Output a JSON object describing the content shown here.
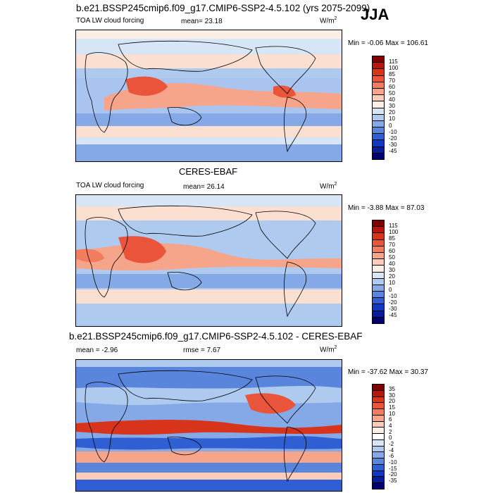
{
  "season": "JJA",
  "panels": [
    {
      "title": "b.e21.BSSP245cmip6.f09_g17.CMIP6-SSP2-4.5.102 (yrs 2075-2099)",
      "left_label": "TOA LW cloud forcing",
      "stat1": "mean=  23.18",
      "stat2": "",
      "units": "W/m",
      "units_sup": "2",
      "minmax": "Min =  -0.06 Max = 106.61",
      "colorbar": {
        "labels": [
          "115",
          "100",
          "85",
          "70",
          "60",
          "50",
          "40",
          "30",
          "20",
          "10",
          "0",
          "-10",
          "-20",
          "-30",
          "-45"
        ],
        "colors": [
          "#800000",
          "#b8160d",
          "#d8341c",
          "#e9543a",
          "#f27c5e",
          "#f7a58a",
          "#fbcdb8",
          "#fbeee5",
          "#d7e6f6",
          "#aecaee",
          "#84a9e6",
          "#5986dc",
          "#2f5fd2",
          "#1138c4",
          "#071e9c",
          "#01006e"
        ]
      }
    },
    {
      "title": "CERES-EBAF",
      "left_label": "TOA LW cloud forcing",
      "stat1": "mean=  26.14",
      "stat2": "",
      "units": "W/m",
      "units_sup": "2",
      "minmax": "Min =  -3.88 Max =  87.03",
      "colorbar": {
        "labels": [
          "115",
          "100",
          "85",
          "70",
          "60",
          "50",
          "40",
          "30",
          "20",
          "10",
          "0",
          "-10",
          "-20",
          "-30",
          "-45"
        ],
        "colors": [
          "#800000",
          "#b8160d",
          "#d8341c",
          "#e9543a",
          "#f27c5e",
          "#f7a58a",
          "#fbcdb8",
          "#fbeee5",
          "#d7e6f6",
          "#aecaee",
          "#84a9e6",
          "#5986dc",
          "#2f5fd2",
          "#1138c4",
          "#071e9c",
          "#01006e"
        ]
      }
    },
    {
      "title": "b.e21.BSSP245cmip6.f09_g17.CMIP6-SSP2-4.5.102 - CERES-EBAF",
      "left_label": "mean =  -2.96",
      "stat1": "rmse =   7.67",
      "stat2": "",
      "units": "W/m",
      "units_sup": "2",
      "minmax": "Min = -37.62 Max =  30.37",
      "colorbar": {
        "labels": [
          "35",
          "30",
          "20",
          "15",
          "10",
          "6",
          "4",
          "2",
          "0",
          "-2",
          "-4",
          "-6",
          "-10",
          "-15",
          "-20",
          "-35"
        ],
        "colors": [
          "#800000",
          "#b8160d",
          "#d8341c",
          "#e9543a",
          "#f27c5e",
          "#f7a58a",
          "#fbcdb8",
          "#fbeee5",
          "#ffffff",
          "#d7e6f6",
          "#aecaee",
          "#84a9e6",
          "#5986dc",
          "#2f5fd2",
          "#1138c4",
          "#071e9c",
          "#01006e"
        ]
      }
    }
  ]
}
